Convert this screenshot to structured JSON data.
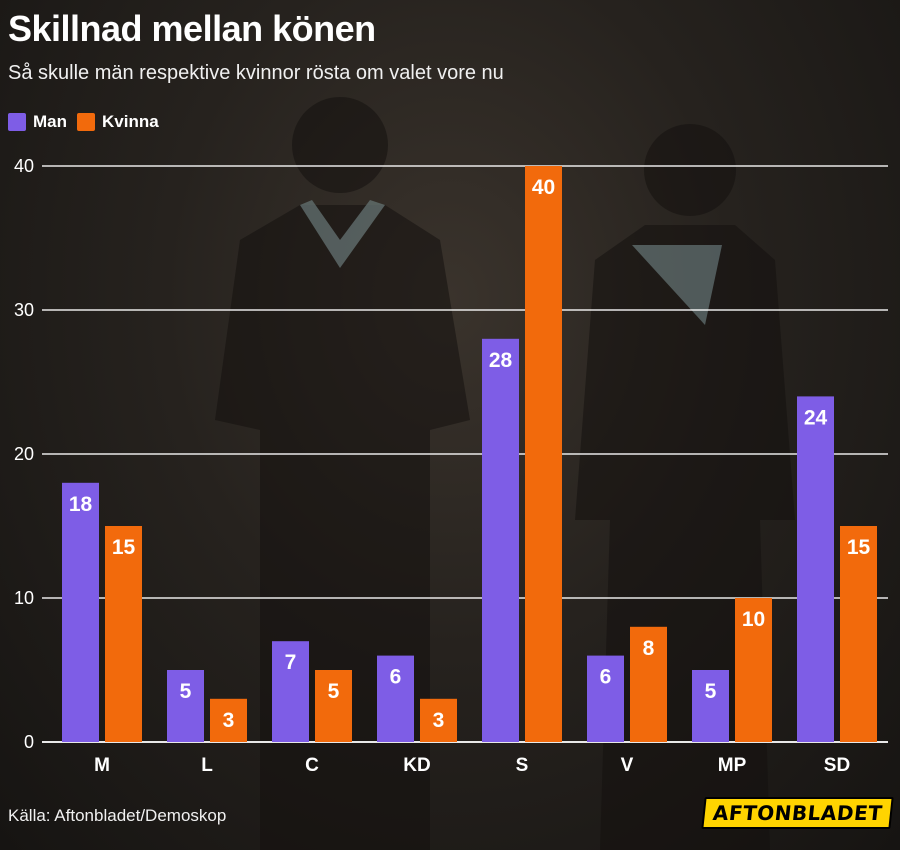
{
  "header": {
    "title": "Skillnad mellan könen",
    "subtitle": "Så skulle män respektive kvinnor rösta om valet vore nu"
  },
  "legend": {
    "items": [
      {
        "label": "Man",
        "color": "#7e5de6"
      },
      {
        "label": "Kvinna",
        "color": "#f26a0c"
      }
    ]
  },
  "chart_data": {
    "type": "bar",
    "categories": [
      "M",
      "L",
      "C",
      "KD",
      "S",
      "V",
      "MP",
      "SD"
    ],
    "series": [
      {
        "name": "Man",
        "color": "#7e5de6",
        "values": [
          18,
          5,
          7,
          6,
          28,
          6,
          5,
          24
        ]
      },
      {
        "name": "Kvinna",
        "color": "#f26a0c",
        "values": [
          15,
          3,
          5,
          3,
          40,
          8,
          10,
          15
        ]
      }
    ],
    "yticks": [
      0,
      10,
      20,
      30,
      40
    ],
    "ylim": [
      0,
      40
    ],
    "grid": true,
    "legend_position": "top-left"
  },
  "footer": {
    "source": "Källa: Aftonbladet/Demoskop",
    "logo_text": "AFTONBLADET"
  }
}
